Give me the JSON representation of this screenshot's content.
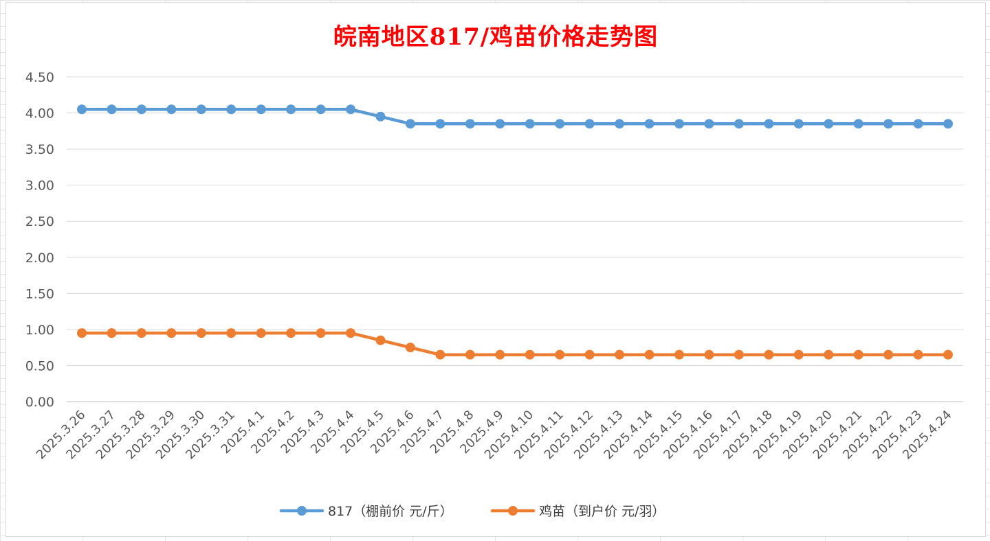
{
  "chart_data": {
    "type": "line",
    "title": "皖南地区817/鸡苗价格走势图",
    "x": [
      "2025.3.26",
      "2025.3.27",
      "2025.3.28",
      "2025.3.29",
      "2025.3.30",
      "2025.3.31",
      "2025.4.1",
      "2025.4.2",
      "2025.4.3",
      "2025.4.4",
      "2025.4.5",
      "2025.4.6",
      "2025.4.7",
      "2025.4.8",
      "2025.4.9",
      "2025.4.10",
      "2025.4.11",
      "2025.4.12",
      "2025.4.13",
      "2025.4.14",
      "2025.4.15",
      "2025.4.16",
      "2025.4.17",
      "2025.4.18",
      "2025.4.19",
      "2025.4.20",
      "2025.4.21",
      "2025.4.22",
      "2025.4.23",
      "2025.4.24"
    ],
    "series": [
      {
        "name": "817（棚前价 元/斤）",
        "color": "#5b9bd5",
        "values": [
          4.05,
          4.05,
          4.05,
          4.05,
          4.05,
          4.05,
          4.05,
          4.05,
          4.05,
          4.05,
          3.95,
          3.85,
          3.85,
          3.85,
          3.85,
          3.85,
          3.85,
          3.85,
          3.85,
          3.85,
          3.85,
          3.85,
          3.85,
          3.85,
          3.85,
          3.85,
          3.85,
          3.85,
          3.85,
          3.85
        ]
      },
      {
        "name": "鸡苗（到户价 元/羽）",
        "color": "#ed7d31",
        "values": [
          0.95,
          0.95,
          0.95,
          0.95,
          0.95,
          0.95,
          0.95,
          0.95,
          0.95,
          0.95,
          0.85,
          0.75,
          0.65,
          0.65,
          0.65,
          0.65,
          0.65,
          0.65,
          0.65,
          0.65,
          0.65,
          0.65,
          0.65,
          0.65,
          0.65,
          0.65,
          0.65,
          0.65,
          0.65,
          0.65
        ]
      }
    ],
    "yticks": [
      "0.00",
      "0.50",
      "1.00",
      "1.50",
      "2.00",
      "2.50",
      "3.00",
      "3.50",
      "4.00",
      "4.50"
    ],
    "ylim": [
      0,
      4.5
    ],
    "grid": true,
    "legend_position": "bottom"
  }
}
